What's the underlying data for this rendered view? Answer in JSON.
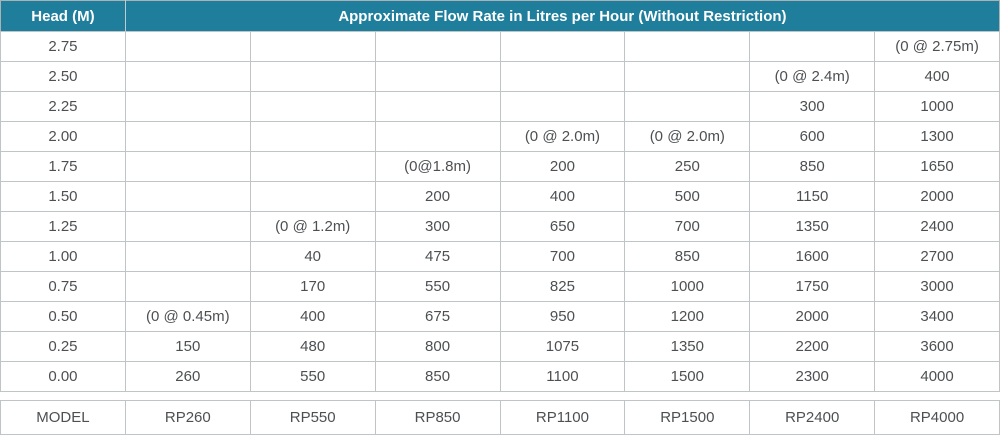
{
  "accent_color": "#1e7e9c",
  "border_color": "#bfc4c6",
  "text_color": "#4d5052",
  "table": {
    "head_header": "Head (M)",
    "flow_header": "Approximate Flow Rate in Litres per Hour (Without Restriction)",
    "rows": [
      {
        "head": "2.75",
        "values": [
          "",
          "",
          "",
          "",
          "",
          "",
          "(0 @ 2.75m)"
        ]
      },
      {
        "head": "2.50",
        "values": [
          "",
          "",
          "",
          "",
          "",
          "(0 @ 2.4m)",
          "400"
        ]
      },
      {
        "head": "2.25",
        "values": [
          "",
          "",
          "",
          "",
          "",
          "300",
          "1000"
        ]
      },
      {
        "head": "2.00",
        "values": [
          "",
          "",
          "",
          "(0 @ 2.0m)",
          "(0 @ 2.0m)",
          "600",
          "1300"
        ]
      },
      {
        "head": "1.75",
        "values": [
          "",
          "",
          "(0@1.8m)",
          "200",
          "250",
          "850",
          "1650"
        ]
      },
      {
        "head": "1.50",
        "values": [
          "",
          "",
          "200",
          "400",
          "500",
          "1150",
          "2000"
        ]
      },
      {
        "head": "1.25",
        "values": [
          "",
          "(0 @ 1.2m)",
          "300",
          "650",
          "700",
          "1350",
          "2400"
        ]
      },
      {
        "head": "1.00",
        "values": [
          "",
          "40",
          "475",
          "700",
          "850",
          "1600",
          "2700"
        ]
      },
      {
        "head": "0.75",
        "values": [
          "",
          "170",
          "550",
          "825",
          "1000",
          "1750",
          "3000"
        ]
      },
      {
        "head": "0.50",
        "values": [
          "(0 @ 0.45m)",
          "400",
          "675",
          "950",
          "1200",
          "2000",
          "3400"
        ]
      },
      {
        "head": "0.25",
        "values": [
          "150",
          "480",
          "800",
          "1075",
          "1350",
          "2200",
          "3600"
        ]
      },
      {
        "head": "0.00",
        "values": [
          "260",
          "550",
          "850",
          "1100",
          "1500",
          "2300",
          "4000"
        ]
      }
    ],
    "model_row": [
      "MODEL",
      "RP260",
      "RP550",
      "RP850",
      "RP1100",
      "RP1500",
      "RP2400",
      "RP4000"
    ]
  },
  "chart_data": {
    "type": "table",
    "title": "Approximate Flow Rate in Litres per Hour (Without Restriction)",
    "columns": [
      "Head (M)",
      "RP260",
      "RP550",
      "RP850",
      "RP1100",
      "RP1500",
      "RP2400",
      "RP4000"
    ],
    "rows": [
      [
        "2.75",
        "",
        "",
        "",
        "",
        "",
        "",
        "(0 @ 2.75m)"
      ],
      [
        "2.50",
        "",
        "",
        "",
        "",
        "",
        "(0 @ 2.4m)",
        "400"
      ],
      [
        "2.25",
        "",
        "",
        "",
        "",
        "",
        "300",
        "1000"
      ],
      [
        "2.00",
        "",
        "",
        "",
        "(0 @ 2.0m)",
        "(0 @ 2.0m)",
        "600",
        "1300"
      ],
      [
        "1.75",
        "",
        "",
        "(0@1.8m)",
        "200",
        "250",
        "850",
        "1650"
      ],
      [
        "1.50",
        "",
        "",
        "200",
        "400",
        "500",
        "1150",
        "2000"
      ],
      [
        "1.25",
        "",
        "(0 @ 1.2m)",
        "300",
        "650",
        "700",
        "1350",
        "2400"
      ],
      [
        "1.00",
        "",
        "40",
        "475",
        "700",
        "850",
        "1600",
        "2700"
      ],
      [
        "0.75",
        "",
        "170",
        "550",
        "825",
        "1000",
        "1750",
        "3000"
      ],
      [
        "0.50",
        "(0 @ 0.45m)",
        "400",
        "675",
        "950",
        "1200",
        "2000",
        "3400"
      ],
      [
        "0.25",
        "150",
        "480",
        "800",
        "1075",
        "1350",
        "2200",
        "3600"
      ],
      [
        "0.00",
        "260",
        "550",
        "850",
        "1100",
        "1500",
        "2300",
        "4000"
      ],
      [
        "MODEL",
        "RP260",
        "RP550",
        "RP850",
        "RP1100",
        "RP1500",
        "RP2400",
        "RP4000"
      ]
    ]
  }
}
